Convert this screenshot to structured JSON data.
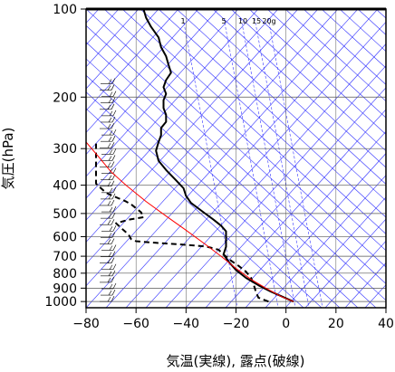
{
  "chart_data": {
    "type": "line",
    "title": "",
    "xlabel": "気温(実線), 露点(破線)",
    "ylabel": "気圧(hPa)",
    "xlim": [
      -80,
      40
    ],
    "ylim": [
      1050,
      100
    ],
    "y_scale": "log",
    "x_ticks": [
      "−80",
      "−60",
      "−40",
      "−20",
      "0",
      "20",
      "40"
    ],
    "x_tick_values": [
      -80,
      -60,
      -40,
      -20,
      0,
      20,
      40
    ],
    "y_ticks": [
      "100",
      "200",
      "300",
      "400",
      "500",
      "600",
      "700",
      "800",
      "900",
      "1000"
    ],
    "y_tick_values": [
      100,
      200,
      300,
      400,
      500,
      600,
      700,
      800,
      900,
      1000
    ],
    "mixing_ratio_labels": [
      "1",
      "5",
      "10",
      "15",
      "20g"
    ],
    "mixing_ratio_values": [
      1,
      5,
      10,
      15,
      20
    ],
    "grid": true,
    "colors": {
      "temperature": "#000000",
      "dewpoint": "#000000",
      "parcel": "#ff0000",
      "dry_adiabat": "#0000ff",
      "background_lines": "#3333ff"
    },
    "series": [
      {
        "key": "temperature",
        "style": "solid",
        "points": [
          [
            3,
            1000
          ],
          [
            0,
            975
          ],
          [
            -6,
            925
          ],
          [
            -11,
            880
          ],
          [
            -16,
            830
          ],
          [
            -20,
            780
          ],
          [
            -23,
            730
          ],
          [
            -25,
            690
          ],
          [
            -24,
            650
          ],
          [
            -24,
            610
          ],
          [
            -24,
            575
          ],
          [
            -26,
            550
          ],
          [
            -29,
            525
          ],
          [
            -33,
            495
          ],
          [
            -38,
            460
          ],
          [
            -40,
            435
          ],
          [
            -41,
            410
          ],
          [
            -44,
            385
          ],
          [
            -48,
            355
          ],
          [
            -51,
            330
          ],
          [
            -52,
            305
          ],
          [
            -51,
            285
          ],
          [
            -50,
            270
          ],
          [
            -50,
            255
          ],
          [
            -48,
            243
          ],
          [
            -48,
            230
          ],
          [
            -49,
            218
          ],
          [
            -49,
            205
          ],
          [
            -48,
            195
          ],
          [
            -49,
            185
          ],
          [
            -48,
            175
          ],
          [
            -46,
            165
          ],
          [
            -47,
            155
          ],
          [
            -48,
            145
          ],
          [
            -50,
            135
          ],
          [
            -51,
            125
          ],
          [
            -54,
            115
          ],
          [
            -56,
            107
          ],
          [
            -57,
            100
          ]
        ]
      },
      {
        "key": "dewpoint",
        "style": "dashed",
        "points": [
          [
            -7,
            1000
          ],
          [
            -11,
            970
          ],
          [
            -12,
            930
          ],
          [
            -13,
            870
          ],
          [
            -14,
            830
          ],
          [
            -16,
            790
          ],
          [
            -19,
            755
          ],
          [
            -22,
            725
          ],
          [
            -25,
            690
          ],
          [
            -27,
            665
          ],
          [
            -32,
            648
          ],
          [
            -42,
            638
          ],
          [
            -52,
            630
          ],
          [
            -60,
            622
          ],
          [
            -62,
            612
          ],
          [
            -63,
            590
          ],
          [
            -66,
            560
          ],
          [
            -68,
            540
          ],
          [
            -63,
            525
          ],
          [
            -57,
            515
          ],
          [
            -58,
            495
          ],
          [
            -60,
            480
          ],
          [
            -62,
            465
          ],
          [
            -64,
            455
          ],
          [
            -68,
            440
          ],
          [
            -72,
            425
          ],
          [
            -74,
            410
          ],
          [
            -76,
            395
          ],
          [
            -76,
            380
          ],
          [
            -76,
            360
          ],
          [
            -76,
            340
          ],
          [
            -76,
            320
          ],
          [
            -76,
            300
          ],
          [
            -76,
            285
          ]
        ]
      },
      {
        "key": "parcel",
        "style": "solid",
        "points": [
          [
            3,
            1000
          ],
          [
            -2,
            960
          ],
          [
            -8,
            900
          ],
          [
            -14,
            840
          ],
          [
            -20,
            770
          ],
          [
            -26,
            700
          ],
          [
            -32,
            640
          ],
          [
            -40,
            570
          ],
          [
            -48,
            510
          ],
          [
            -56,
            455
          ],
          [
            -64,
            400
          ],
          [
            -70,
            360
          ],
          [
            -75,
            320
          ],
          [
            -80,
            285
          ]
        ]
      }
    ],
    "wind_barbs_pressure_range": [
      1000,
      180
    ]
  }
}
